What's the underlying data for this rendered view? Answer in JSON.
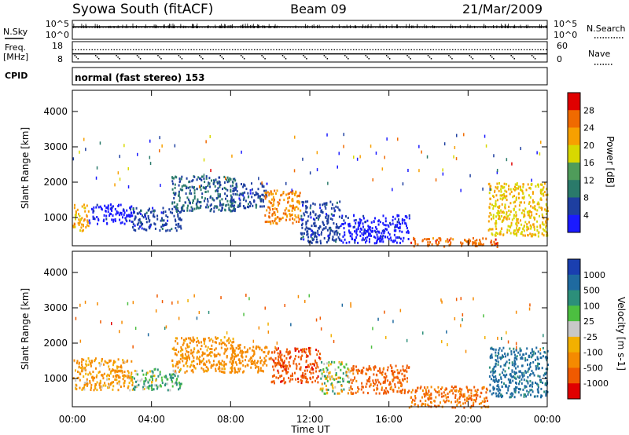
{
  "header": {
    "station": "Syowa South (fitACF)",
    "beam": "Beam 09",
    "date": "21/Mar/2009"
  },
  "cpid_label": "CPID",
  "cpid_value": "normal (fast stereo) 153",
  "time_axis": {
    "label": "Time UT",
    "ticks": [
      "00:00",
      "04:00",
      "08:00",
      "12:00",
      "16:00",
      "20:00",
      "00:00"
    ],
    "range_hours": [
      0,
      24
    ]
  },
  "colors": {
    "power": [
      "#1a1aff",
      "#1e3fa0",
      "#2a7a6a",
      "#4f9c5a",
      "#d8d800",
      "#f7a000",
      "#f06a00",
      "#e00000"
    ],
    "velocity": [
      "#1a3fb0",
      "#1f6aa0",
      "#2c8f7a",
      "#4cbf40",
      "#c8c8c8",
      "#f2b000",
      "#f58a00",
      "#f05a00",
      "#e00000"
    ]
  },
  "chart_data": [
    {
      "type": "line",
      "panel": "noise",
      "left_label": "N.Sky",
      "right_label": "N.Search",
      "left_ticks": [
        "10^5",
        "10^0"
      ],
      "right_ticks": [
        "10^5",
        "10^0"
      ],
      "yscale": "log",
      "series": [
        {
          "name": "N.Sky",
          "x": [
            0,
            2,
            4,
            6,
            8,
            10,
            12,
            14,
            16,
            18,
            20,
            22,
            24
          ],
          "values": [
            2000,
            2000,
            2100,
            2000,
            2000,
            2100,
            2000,
            2000,
            2000,
            2000,
            2000,
            2000,
            2000
          ]
        },
        {
          "name": "N.Search",
          "x": [
            0,
            2,
            4,
            6,
            8,
            10,
            12,
            14,
            16,
            18,
            20,
            22,
            24
          ],
          "values": [
            1500,
            1500,
            1500,
            1500,
            1500,
            1500,
            1500,
            1500,
            1500,
            1500,
            1500,
            1500,
            1500
          ]
        }
      ]
    },
    {
      "type": "line",
      "panel": "frequency",
      "left_label": "Freq.",
      "left_unit": "[MHz]",
      "right_label": "Nave",
      "left_ticks": [
        "18",
        "8"
      ],
      "right_ticks": [
        "60",
        "0"
      ],
      "ylim_left": [
        8,
        18
      ],
      "ylim_right": [
        0,
        60
      ],
      "series": [
        {
          "name": "Freq.",
          "x": [
            0,
            4,
            8,
            12,
            16,
            20,
            24
          ],
          "values": [
            12,
            12,
            12,
            12,
            12,
            12,
            12
          ]
        },
        {
          "name": "Nave",
          "x": [
            0,
            4,
            8,
            12,
            16,
            20,
            24
          ],
          "values": [
            36,
            36,
            36,
            36,
            36,
            36,
            36
          ]
        }
      ]
    },
    {
      "type": "heatmap",
      "panel": "power",
      "ylabel": "Slant Range [km]",
      "yticks": [
        "1000",
        "2000",
        "3000",
        "4000"
      ],
      "ylim": [
        200,
        4600
      ],
      "xlim": [
        0,
        24
      ],
      "colorbar": {
        "label": "Power [dB]",
        "ticks": [
          "4",
          "8",
          "12",
          "16",
          "20",
          "24",
          "28"
        ],
        "range": [
          0,
          32
        ]
      },
      "echo_regions": [
        {
          "t": [
            0.0,
            0.8
          ],
          "r": [
            650,
            1400
          ],
          "level": 24
        },
        {
          "t": [
            0.8,
            3.0
          ],
          "r": [
            850,
            1400
          ],
          "level": 4
        },
        {
          "t": [
            3.0,
            5.5
          ],
          "r": [
            650,
            1300
          ],
          "level": 8
        },
        {
          "t": [
            5.0,
            8.2
          ],
          "r": [
            1200,
            2200
          ],
          "level": 10
        },
        {
          "t": [
            8.0,
            9.8
          ],
          "r": [
            1300,
            2000
          ],
          "level": 8
        },
        {
          "t": [
            9.7,
            11.5
          ],
          "r": [
            850,
            1800
          ],
          "level": 26
        },
        {
          "t": [
            11.5,
            13.5
          ],
          "r": [
            300,
            1500
          ],
          "level": 8
        },
        {
          "t": [
            13.5,
            17.0
          ],
          "r": [
            300,
            1100
          ],
          "level": 4
        },
        {
          "t": [
            17.0,
            21.5
          ],
          "r": [
            200,
            450
          ],
          "level": 28
        },
        {
          "t": [
            21.0,
            24.0
          ],
          "r": [
            500,
            2000
          ],
          "level": 22
        }
      ]
    },
    {
      "type": "heatmap",
      "panel": "velocity",
      "ylabel": "Slant Range [km]",
      "yticks": [
        "1000",
        "2000",
        "3000",
        "4000"
      ],
      "ylim": [
        200,
        4600
      ],
      "xlim": [
        0,
        24
      ],
      "colorbar": {
        "label": "Velocity [m s-1]",
        "ticks": [
          "1000",
          "500",
          "100",
          "25",
          "-25",
          "-100",
          "-500",
          "-1000"
        ],
        "range": [
          -1200,
          1200
        ]
      },
      "echo_regions": [
        {
          "t": [
            0.0,
            3.0
          ],
          "r": [
            700,
            1600
          ],
          "level": -150
        },
        {
          "t": [
            3.0,
            5.5
          ],
          "r": [
            700,
            1300
          ],
          "level": 100
        },
        {
          "t": [
            5.0,
            8.2
          ],
          "r": [
            1200,
            2200
          ],
          "level": -200
        },
        {
          "t": [
            8.0,
            10.0
          ],
          "r": [
            1200,
            2000
          ],
          "level": -300
        },
        {
          "t": [
            10.0,
            12.5
          ],
          "r": [
            900,
            1900
          ],
          "level": -900
        },
        {
          "t": [
            12.5,
            14.0
          ],
          "r": [
            600,
            1500
          ],
          "level": 0
        },
        {
          "t": [
            14.0,
            17.0
          ],
          "r": [
            600,
            1400
          ],
          "level": -600
        },
        {
          "t": [
            17.0,
            21.0
          ],
          "r": [
            200,
            800
          ],
          "level": -500
        },
        {
          "t": [
            21.0,
            24.0
          ],
          "r": [
            500,
            1900
          ],
          "level": 600
        }
      ]
    }
  ]
}
